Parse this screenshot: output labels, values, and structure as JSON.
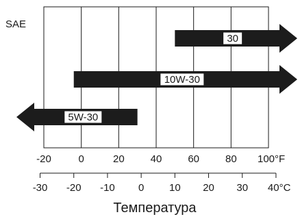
{
  "chart_data": {
    "type": "bar",
    "title": "",
    "ylabel": "SAE",
    "xlabel": "Температура",
    "x_unit_f": "°F",
    "x_unit_c": "°C",
    "fahrenheit_axis": {
      "ticks": [
        -20,
        0,
        20,
        40,
        60,
        80,
        100
      ],
      "tick_labels": [
        "-20",
        "0",
        "20",
        "40",
        "60",
        "80",
        "100°F"
      ],
      "range": [
        -20,
        100
      ]
    },
    "celsius_axis": {
      "ticks": [
        -30,
        -20,
        -10,
        0,
        10,
        20,
        30,
        40
      ],
      "tick_labels": [
        "-30",
        "-20",
        "-10",
        "0",
        "10",
        "20",
        "30",
        "40°C"
      ],
      "range": [
        -30,
        40
      ]
    },
    "series": [
      {
        "name": "30",
        "start_f": 50,
        "end_f": null,
        "arrow_left": false,
        "arrow_right": true
      },
      {
        "name": "10W-30",
        "start_f": -4,
        "end_f": null,
        "arrow_left": false,
        "arrow_right": true
      },
      {
        "name": "5W-30",
        "start_f": null,
        "end_f": 30,
        "arrow_left": true,
        "arrow_right": false
      }
    ],
    "grid": true,
    "bar_color": "#1c1c1c",
    "label_box_color": "#ffffff"
  }
}
